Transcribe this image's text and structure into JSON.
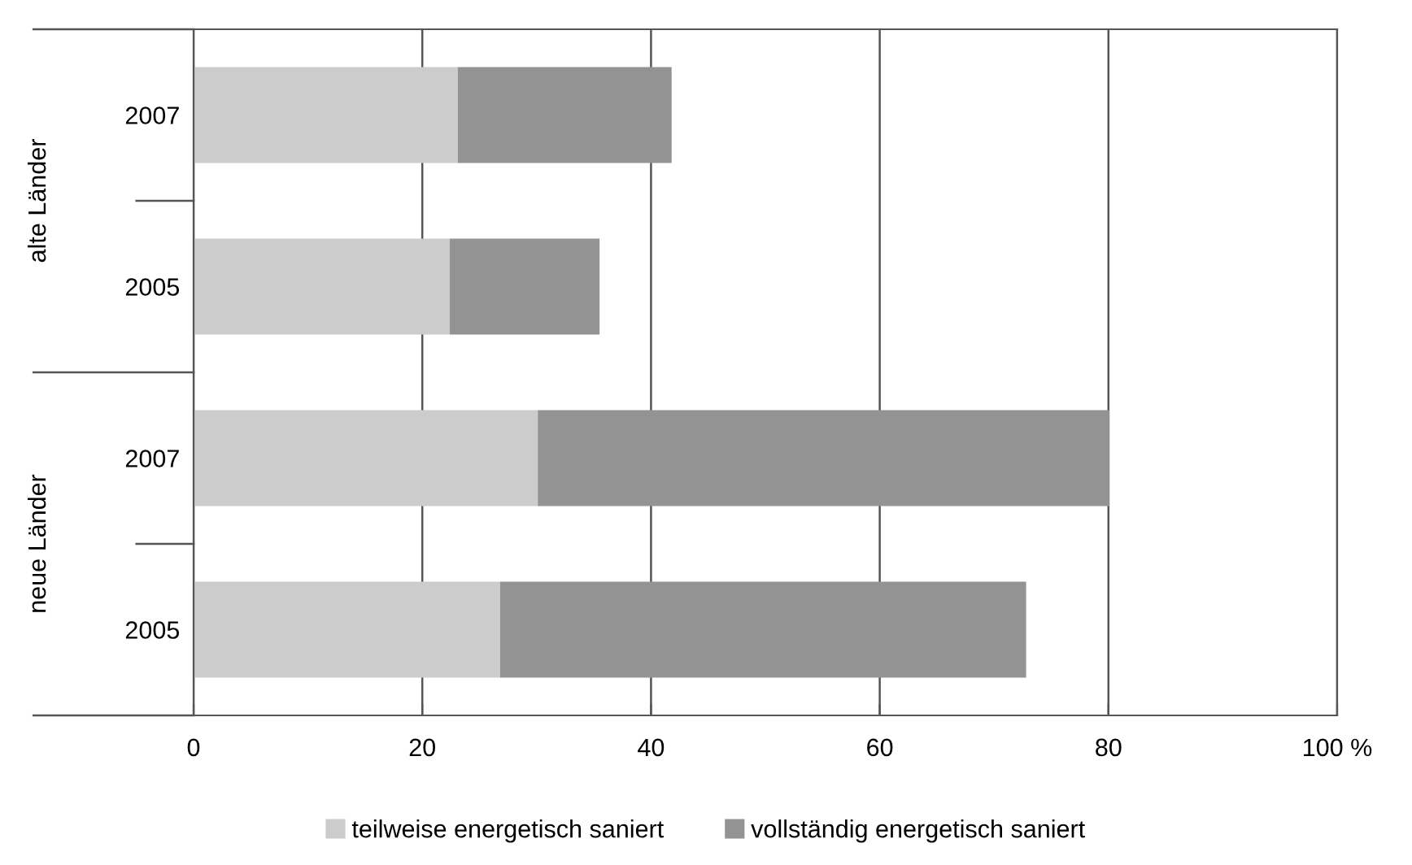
{
  "chart_data": {
    "type": "bar",
    "orientation": "horizontal",
    "stacked": true,
    "categories": [
      "2007",
      "2005",
      "2007",
      "2005"
    ],
    "series": [
      {
        "name": "teilweise energetisch saniert",
        "color": "#cccccc",
        "values": [
          23.1,
          22.4,
          30.1,
          26.8
        ]
      },
      {
        "name": "vollständig energetisch saniert",
        "color": "#939393",
        "values": [
          18.7,
          13.1,
          50.0,
          46.0
        ]
      }
    ],
    "xlim": [
      0,
      100
    ],
    "xticks": [
      0,
      20,
      40,
      60,
      80,
      {
        "value": 100,
        "label": "100 %"
      }
    ],
    "grid": "x",
    "legend": "bottom",
    "annotations": [
      "alte Länder",
      "neue Länder"
    ]
  }
}
